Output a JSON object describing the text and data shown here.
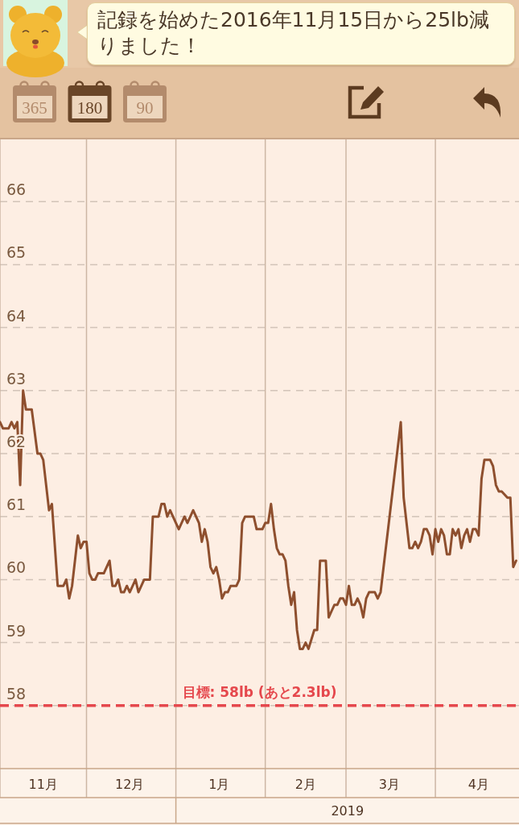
{
  "chart_data": {
    "type": "line",
    "title": "記録を始めた2016年11月15日から25lb減りました！",
    "x": [
      "2018-11-01",
      "2018-11-02",
      "2018-11-04",
      "2018-11-05",
      "2018-11-06",
      "2018-11-07",
      "2018-11-08",
      "2018-11-09",
      "2018-11-10",
      "2018-11-12",
      "2018-11-14",
      "2018-11-15",
      "2018-11-16",
      "2018-11-18",
      "2018-11-19",
      "2018-11-21",
      "2018-11-23",
      "2018-11-24",
      "2018-11-25",
      "2018-11-26",
      "2018-11-28",
      "2018-11-29",
      "2018-11-30",
      "2018-12-01",
      "2018-12-02",
      "2018-12-03",
      "2018-12-04",
      "2018-12-05",
      "2018-12-07",
      "2018-12-09",
      "2018-12-10",
      "2018-12-11",
      "2018-12-12",
      "2018-12-13",
      "2018-12-14",
      "2018-12-15",
      "2018-12-16",
      "2018-12-18",
      "2018-12-19",
      "2018-12-21",
      "2018-12-23",
      "2018-12-24",
      "2018-12-26",
      "2018-12-27",
      "2018-12-28",
      "2018-12-29",
      "2018-12-30",
      "2019-01-02",
      "2019-01-04",
      "2019-01-05",
      "2019-01-07",
      "2019-01-09",
      "2019-01-10",
      "2019-01-11",
      "2019-01-12",
      "2019-01-13",
      "2019-01-14",
      "2019-01-15",
      "2019-01-16",
      "2019-01-17",
      "2019-01-18",
      "2019-01-19",
      "2019-01-20",
      "2019-01-22",
      "2019-01-23",
      "2019-01-24",
      "2019-01-25",
      "2019-01-28",
      "2019-01-29",
      "2019-01-31",
      "2019-02-01",
      "2019-02-02",
      "2019-02-03",
      "2019-02-04",
      "2019-02-05",
      "2019-02-06",
      "2019-02-07",
      "2019-02-08",
      "2019-02-09",
      "2019-02-10",
      "2019-02-11",
      "2019-02-12",
      "2019-02-13",
      "2019-02-14",
      "2019-02-15",
      "2019-02-16",
      "2019-02-18",
      "2019-02-19",
      "2019-02-20",
      "2019-02-22",
      "2019-02-23",
      "2019-02-24",
      "2019-02-25",
      "2019-02-26",
      "2019-02-27",
      "2019-02-28",
      "2019-03-01",
      "2019-03-02",
      "2019-03-03",
      "2019-03-04",
      "2019-03-05",
      "2019-03-06",
      "2019-03-07",
      "2019-03-08",
      "2019-03-09",
      "2019-03-11",
      "2019-03-12",
      "2019-03-13",
      "2019-03-20",
      "2019-03-21",
      "2019-03-23",
      "2019-03-24",
      "2019-03-25",
      "2019-03-26",
      "2019-03-27",
      "2019-03-28",
      "2019-03-29",
      "2019-03-30",
      "2019-03-31",
      "2019-04-01",
      "2019-04-02",
      "2019-04-03",
      "2019-04-04",
      "2019-04-05",
      "2019-04-06",
      "2019-04-07",
      "2019-04-08",
      "2019-04-09",
      "2019-04-10",
      "2019-04-11",
      "2019-04-12",
      "2019-04-13",
      "2019-04-14",
      "2019-04-15",
      "2019-04-16",
      "2019-04-17",
      "2019-04-18",
      "2019-04-20",
      "2019-04-21",
      "2019-04-22",
      "2019-04-23",
      "2019-04-24",
      "2019-04-26",
      "2019-04-27",
      "2019-04-28",
      "2019-04-29"
    ],
    "values": [
      62.5,
      62.4,
      62.4,
      62.5,
      62.4,
      62.5,
      61.5,
      63.0,
      62.7,
      62.7,
      62.0,
      62.0,
      61.9,
      61.1,
      61.2,
      59.9,
      59.9,
      60.0,
      59.7,
      59.9,
      60.7,
      60.5,
      60.6,
      60.6,
      60.1,
      60.0,
      60.0,
      60.1,
      60.1,
      60.3,
      59.9,
      59.9,
      60.0,
      59.8,
      59.8,
      59.9,
      59.8,
      60.0,
      59.8,
      60.0,
      60.0,
      61.0,
      61.0,
      61.2,
      61.2,
      61.0,
      61.1,
      60.8,
      61.0,
      60.9,
      61.1,
      60.9,
      60.6,
      60.8,
      60.6,
      60.2,
      60.1,
      60.2,
      60.0,
      59.7,
      59.8,
      59.8,
      59.9,
      59.9,
      60.0,
      60.9,
      61.0,
      61.0,
      60.8,
      60.8,
      60.9,
      60.9,
      61.2,
      60.8,
      60.5,
      60.4,
      60.4,
      60.3,
      59.9,
      59.6,
      59.8,
      59.2,
      58.9,
      58.9,
      59.0,
      58.9,
      59.2,
      59.2,
      60.3,
      60.3,
      59.4,
      59.5,
      59.6,
      59.6,
      59.7,
      59.7,
      59.6,
      59.9,
      59.6,
      59.6,
      59.7,
      59.6,
      59.4,
      59.7,
      59.8,
      59.8,
      59.7,
      59.8,
      62.5,
      61.3,
      60.5,
      60.5,
      60.6,
      60.5,
      60.6,
      60.8,
      60.8,
      60.7,
      60.4,
      60.8,
      60.6,
      60.8,
      60.7,
      60.4,
      60.4,
      60.8,
      60.7,
      60.8,
      60.5,
      60.7,
      60.8,
      60.6,
      60.8,
      60.8,
      60.7,
      61.6,
      61.9,
      61.9,
      61.8,
      61.5,
      61.4,
      61.4,
      61.3,
      61.3,
      60.2,
      60.3
    ],
    "color": "#8e4f2e",
    "xlim": [
      "2018-11-01",
      "2019-04-30"
    ],
    "xticks": [
      {
        "value": "2018-11-01",
        "label": null
      },
      {
        "value": "2018-11-16",
        "label": "11月"
      },
      {
        "value": "2018-12-01",
        "label": null
      },
      {
        "value": "2018-12-16",
        "label": "12月"
      },
      {
        "value": "2019-01-01",
        "label": null
      },
      {
        "value": "2019-01-16",
        "label": "1月"
      },
      {
        "value": "2019-02-01",
        "label": null
      },
      {
        "value": "2019-02-15",
        "label": "2月"
      },
      {
        "value": "2019-03-01",
        "label": null
      },
      {
        "value": "2019-03-16",
        "label": "3月"
      },
      {
        "value": "2019-04-01",
        "label": null
      },
      {
        "value": "2019-04-16",
        "label": "4月"
      }
    ],
    "ylim": [
      57,
      67
    ],
    "yticks": [
      58,
      59,
      60,
      61,
      62,
      63,
      64,
      65,
      66
    ],
    "grid": true,
    "ref_lines": [
      {
        "axis": "y",
        "value": 58,
        "label": "目標: 58lb (あと2.3lb)",
        "color": "#e5484d",
        "line_style": "dashed"
      }
    ],
    "annotations": [
      "365",
      "180",
      "90",
      "2019"
    ]
  }
}
